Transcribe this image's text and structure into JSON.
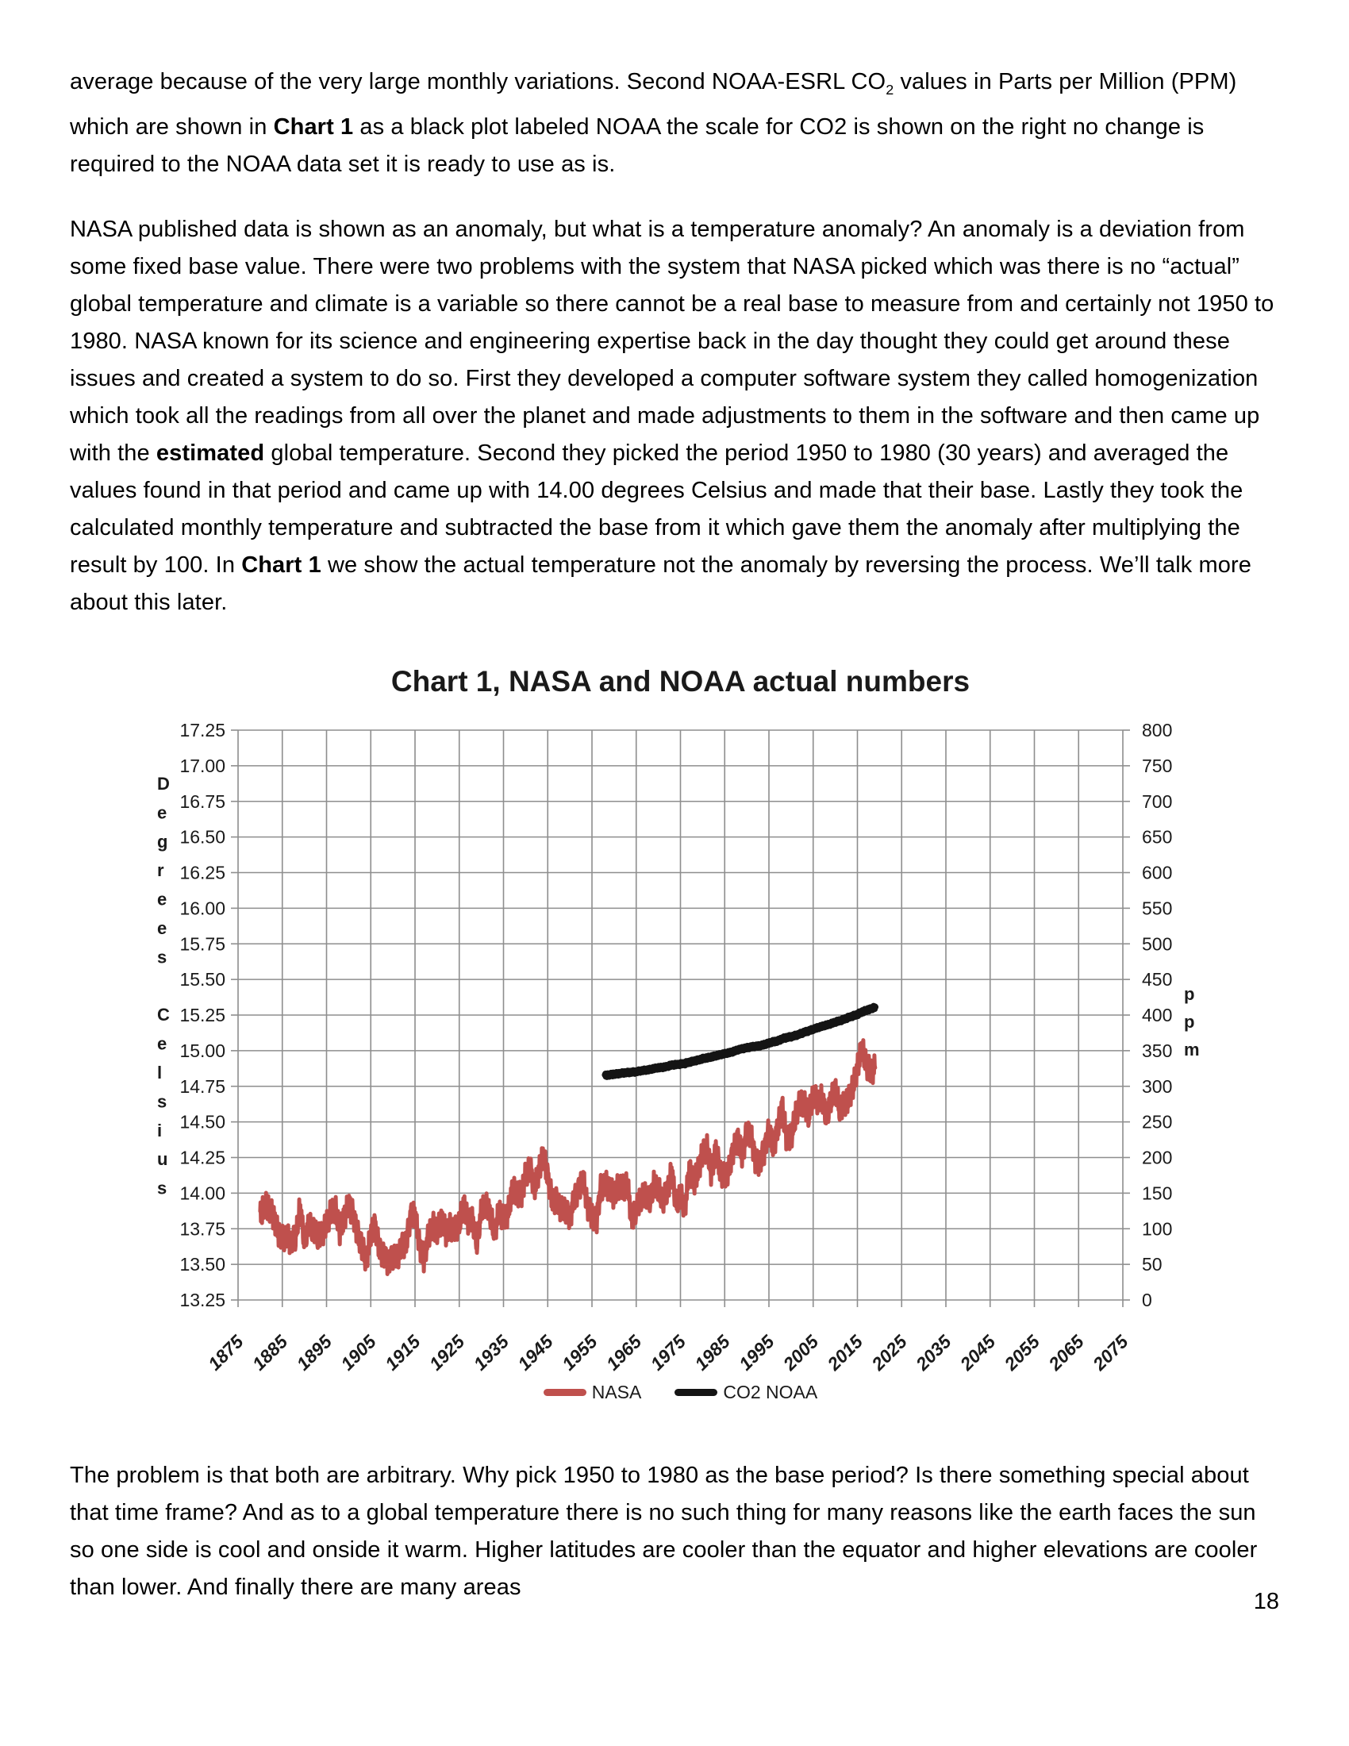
{
  "page": {
    "number": "18"
  },
  "paragraphs": {
    "p1": {
      "s1": "average because of the very large monthly variations. Second NOAA-ESRL CO",
      "s2_sub": "2",
      "s3": " values in Parts per Million (PPM) which are shown in ",
      "s4_bold": "Chart 1",
      "s5": " as a black plot labeled NOAA the scale for CO2 is shown on the right no change is required to the NOAA data set it is ready to use as is."
    },
    "p2": {
      "s1": "NASA published data is shown as an anomaly, but what is a temperature anomaly?  An anomaly is a deviation from some fixed base value. There were two problems with the system that NASA picked which was there is no “actual” global temperature and climate is a variable so there cannot be a real base to measure from and certainly not 1950 to 1980. NASA known for its science and engineering expertise back in the day thought they could get around these issues and created a system to do so. First they developed a computer software system they called homogenization which took all the readings from all over the planet and made adjustments to them in the software and then came up with the ",
      "s2_bold": "estimated",
      "s3": " global temperature. Second they picked the period 1950 to 1980 (30 years) and averaged the values found in that period and came up with 14.00 degrees Celsius and made that their base.  Lastly they took the calculated monthly temperature and subtracted the base from it which gave them the anomaly after multiplying the result by 100. In ",
      "s4_bold": "Chart 1",
      "s5": " we show the actual temperature not the anomaly by reversing the process. We’ll talk more about this later."
    },
    "p3": {
      "s1": "The problem is that both are arbitrary. Why pick 1950 to 1980 as the base period? Is there something special about that time frame? And as to a global temperature there is no such thing for many reasons like the earth faces the sun so one side is cool and onside it warm. Higher latitudes are cooler than the equator and higher elevations are cooler than lower. And finally there are many areas"
    }
  },
  "chart_data": {
    "type": "line",
    "title": "Chart 1, NASA and NOAA actual numbers",
    "grid": true,
    "legend_position": "bottom",
    "colors": {
      "grid": "#8e8e8e",
      "nasa": "#bf504d",
      "co2": "#141414"
    },
    "x": {
      "min": 1875,
      "max": 2075,
      "tick_step": 10
    },
    "x_ticks": [
      1875,
      1885,
      1895,
      1905,
      1915,
      1925,
      1935,
      1945,
      1955,
      1965,
      1975,
      1985,
      1995,
      2005,
      2015,
      2025,
      2035,
      2045,
      2055,
      2065,
      2075
    ],
    "y_left": {
      "label": "Degrees Celsius",
      "min": 13.25,
      "max": 17.25,
      "tick_step": 0.25
    },
    "y_left_ticks": [
      17.25,
      17.0,
      16.75,
      16.5,
      16.25,
      16.0,
      15.75,
      15.5,
      15.25,
      15.0,
      14.75,
      14.5,
      14.25,
      14.0,
      13.75,
      13.5,
      13.25
    ],
    "y_right": {
      "label": "ppm",
      "min": 0,
      "max": 800,
      "tick_step": 50
    },
    "y_right_ticks": [
      800,
      750,
      700,
      650,
      600,
      550,
      500,
      450,
      400,
      350,
      300,
      250,
      200,
      150,
      100,
      50,
      0
    ],
    "series": [
      {
        "name": "NASA",
        "axis": "left",
        "color": "#bf504d",
        "line_width": 5,
        "monthly_noise": 0.075,
        "x_start": 1880,
        "x_step": 1,
        "values": [
          13.84,
          13.92,
          13.89,
          13.83,
          13.72,
          13.67,
          13.69,
          13.64,
          13.68,
          13.89,
          13.65,
          13.77,
          13.73,
          13.69,
          13.7,
          13.78,
          13.86,
          13.89,
          13.73,
          13.83,
          13.92,
          13.85,
          13.72,
          13.63,
          13.53,
          13.73,
          13.78,
          13.61,
          13.57,
          13.52,
          13.57,
          13.56,
          13.64,
          13.66,
          13.85,
          13.86,
          13.64,
          13.54,
          13.7,
          13.78,
          13.73,
          13.81,
          13.72,
          13.76,
          13.73,
          13.78,
          13.91,
          13.79,
          13.8,
          13.64,
          13.87,
          13.91,
          13.84,
          13.71,
          13.87,
          13.81,
          13.85,
          14.02,
          14.0,
          13.98,
          14.13,
          14.18,
          14.04,
          14.16,
          14.28,
          14.12,
          13.96,
          13.96,
          13.9,
          13.9,
          13.83,
          13.98,
          14.03,
          14.12,
          13.91,
          13.85,
          13.8,
          14.04,
          14.07,
          14.03,
          13.98,
          14.05,
          14.03,
          14.06,
          13.8,
          13.88,
          13.95,
          13.98,
          13.93,
          14.05,
          14.02,
          13.93,
          14.0,
          14.14,
          13.92,
          13.98,
          13.89,
          14.16,
          14.07,
          14.16,
          14.28,
          14.32,
          14.14,
          14.31,
          14.16,
          14.12,
          14.18,
          14.32,
          14.39,
          14.27,
          14.45,
          14.41,
          14.22,
          14.23,
          14.31,
          14.45,
          14.33,
          14.46,
          14.61,
          14.38,
          14.39,
          14.54,
          14.63,
          14.62,
          14.54,
          14.68,
          14.63,
          14.66,
          14.52,
          14.64,
          14.72,
          14.58,
          14.61,
          14.65,
          14.74,
          14.87,
          15.02,
          14.9,
          14.85,
          14.88
        ]
      },
      {
        "name": "CO2 NOAA",
        "axis": "right",
        "color": "#141414",
        "line_width": 8.5,
        "monthly_noise": 1.8,
        "x_start": 1958,
        "x_step": 1,
        "values": [
          315.2,
          316.0,
          316.9,
          317.6,
          318.5,
          319.0,
          319.6,
          320.0,
          321.4,
          322.2,
          323.0,
          324.6,
          325.7,
          326.3,
          327.5,
          329.7,
          330.2,
          331.1,
          332.0,
          333.8,
          335.4,
          336.8,
          338.8,
          340.1,
          341.4,
          343.0,
          344.6,
          346.1,
          347.4,
          349.2,
          351.6,
          353.1,
          354.4,
          355.6,
          356.4,
          357.1,
          358.8,
          360.8,
          362.6,
          363.7,
          366.7,
          368.4,
          369.5,
          371.1,
          373.2,
          375.8,
          377.5,
          379.8,
          381.9,
          383.8,
          385.6,
          387.4,
          389.9,
          391.6,
          393.9,
          396.5,
          398.6,
          400.8,
          404.2,
          406.6,
          408.5,
          411.4
        ]
      }
    ]
  }
}
